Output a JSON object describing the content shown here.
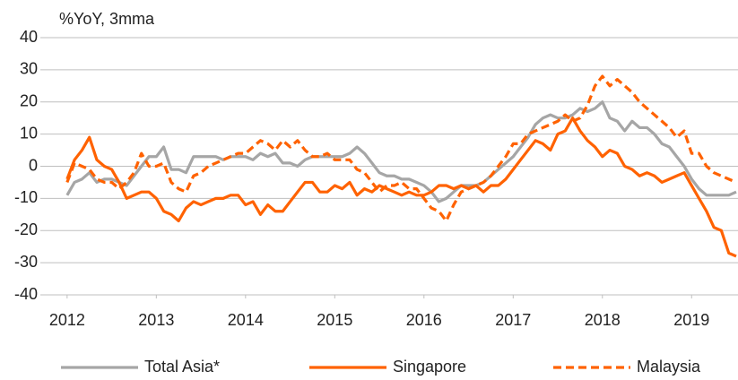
{
  "chart_data": {
    "type": "line",
    "y_label": "%YoY, 3mma",
    "x": [
      2012,
      2012.083,
      2012.167,
      2012.25,
      2012.333,
      2012.417,
      2012.5,
      2012.583,
      2012.667,
      2012.75,
      2012.833,
      2012.917,
      2013,
      2013.083,
      2013.167,
      2013.25,
      2013.333,
      2013.417,
      2013.5,
      2013.583,
      2013.667,
      2013.75,
      2013.833,
      2013.917,
      2014,
      2014.083,
      2014.167,
      2014.25,
      2014.333,
      2014.417,
      2014.5,
      2014.583,
      2014.667,
      2014.75,
      2014.833,
      2014.917,
      2015,
      2015.083,
      2015.167,
      2015.25,
      2015.333,
      2015.417,
      2015.5,
      2015.583,
      2015.667,
      2015.75,
      2015.833,
      2015.917,
      2016,
      2016.083,
      2016.167,
      2016.25,
      2016.333,
      2016.417,
      2016.5,
      2016.583,
      2016.667,
      2016.75,
      2016.833,
      2016.917,
      2017,
      2017.083,
      2017.167,
      2017.25,
      2017.333,
      2017.417,
      2017.5,
      2017.583,
      2017.667,
      2017.75,
      2017.833,
      2017.917,
      2018,
      2018.083,
      2018.167,
      2018.25,
      2018.333,
      2018.417,
      2018.5,
      2018.583,
      2018.667,
      2018.75,
      2018.833,
      2018.917,
      2019,
      2019.083,
      2019.167,
      2019.25,
      2019.333,
      2019.417,
      2019.5
    ],
    "series": [
      {
        "name": "Total Asia*",
        "color": "#a6a6a6",
        "style": "solid",
        "values": [
          -9,
          -5,
          -4,
          -2,
          -5,
          -4,
          -4,
          -5,
          -6,
          -3,
          0,
          3,
          3,
          6,
          -1,
          -1,
          -2,
          3,
          3,
          3,
          3,
          2,
          3,
          3,
          3,
          2,
          4,
          3,
          4,
          1,
          1,
          0,
          2,
          3,
          3,
          3,
          3,
          3,
          4,
          6,
          4,
          1,
          -2,
          -3,
          -3,
          -4,
          -4,
          -5,
          -6,
          -8,
          -11,
          -10,
          -8,
          -6,
          -6,
          -6,
          -5,
          -3,
          -1,
          1,
          3,
          6,
          9,
          13,
          15,
          16,
          15,
          15,
          16,
          18,
          17,
          18,
          20,
          15,
          14,
          11,
          14,
          12,
          12,
          10,
          7,
          6,
          3,
          0,
          -4,
          -7,
          -9,
          -9,
          -9,
          -9,
          -8
        ]
      },
      {
        "name": "Singapore",
        "color": "#ff6200",
        "style": "solid",
        "values": [
          -4,
          2,
          5,
          9,
          2,
          0,
          -1,
          -5,
          -10,
          -9,
          -8,
          -8,
          -10,
          -14,
          -15,
          -17,
          -13,
          -11,
          -12,
          -11,
          -10,
          -10,
          -9,
          -9,
          -12,
          -11,
          -15,
          -12,
          -14,
          -14,
          -11,
          -8,
          -5,
          -5,
          -8,
          -8,
          -6,
          -7,
          -5,
          -9,
          -7,
          -8,
          -6,
          -7,
          -8,
          -9,
          -8,
          -9,
          -9,
          -8,
          -6,
          -6,
          -7,
          -6,
          -7,
          -6,
          -8,
          -6,
          -6,
          -4,
          -1,
          2,
          5,
          8,
          7,
          5,
          10,
          11,
          15,
          11,
          8,
          6,
          3,
          5,
          4,
          0,
          -1,
          -3,
          -2,
          -3,
          -5,
          -4,
          -3,
          -2,
          -6,
          -10,
          -14,
          -19,
          -20,
          -27,
          -28
        ]
      },
      {
        "name": "Malaysia",
        "color": "#ff6200",
        "style": "dashed",
        "values": [
          -5,
          1,
          0,
          -1,
          -4,
          -5,
          -5,
          -7,
          -5,
          -2,
          4,
          0,
          0,
          1,
          -5,
          -7,
          -8,
          -3,
          -2,
          0,
          1,
          2,
          3,
          4,
          4,
          6,
          8,
          7,
          5,
          8,
          6,
          8,
          5,
          3,
          3,
          4,
          2,
          2,
          2,
          -1,
          -2,
          -5,
          -8,
          -6,
          -6,
          -5,
          -7,
          -7,
          -10,
          -13,
          -14,
          -17,
          -12,
          -8,
          -7,
          -6,
          -5,
          -3,
          0,
          3,
          7,
          7,
          10,
          11,
          12,
          13,
          14,
          16,
          14,
          15,
          19,
          25,
          28,
          25,
          27,
          25,
          23,
          20,
          18,
          16,
          14,
          12,
          9,
          11,
          4,
          4,
          0,
          -2,
          -3,
          -4,
          -5
        ]
      }
    ],
    "xlim": [
      2011.7,
      2019.52
    ],
    "xticks": [
      2012,
      2013,
      2014,
      2015,
      2016,
      2017,
      2018,
      2019
    ],
    "ylim": [
      -40,
      40
    ],
    "yticks": [
      -40,
      -30,
      -20,
      -10,
      0,
      10,
      20,
      30,
      40
    ],
    "grid": true,
    "legend": "bottom"
  }
}
